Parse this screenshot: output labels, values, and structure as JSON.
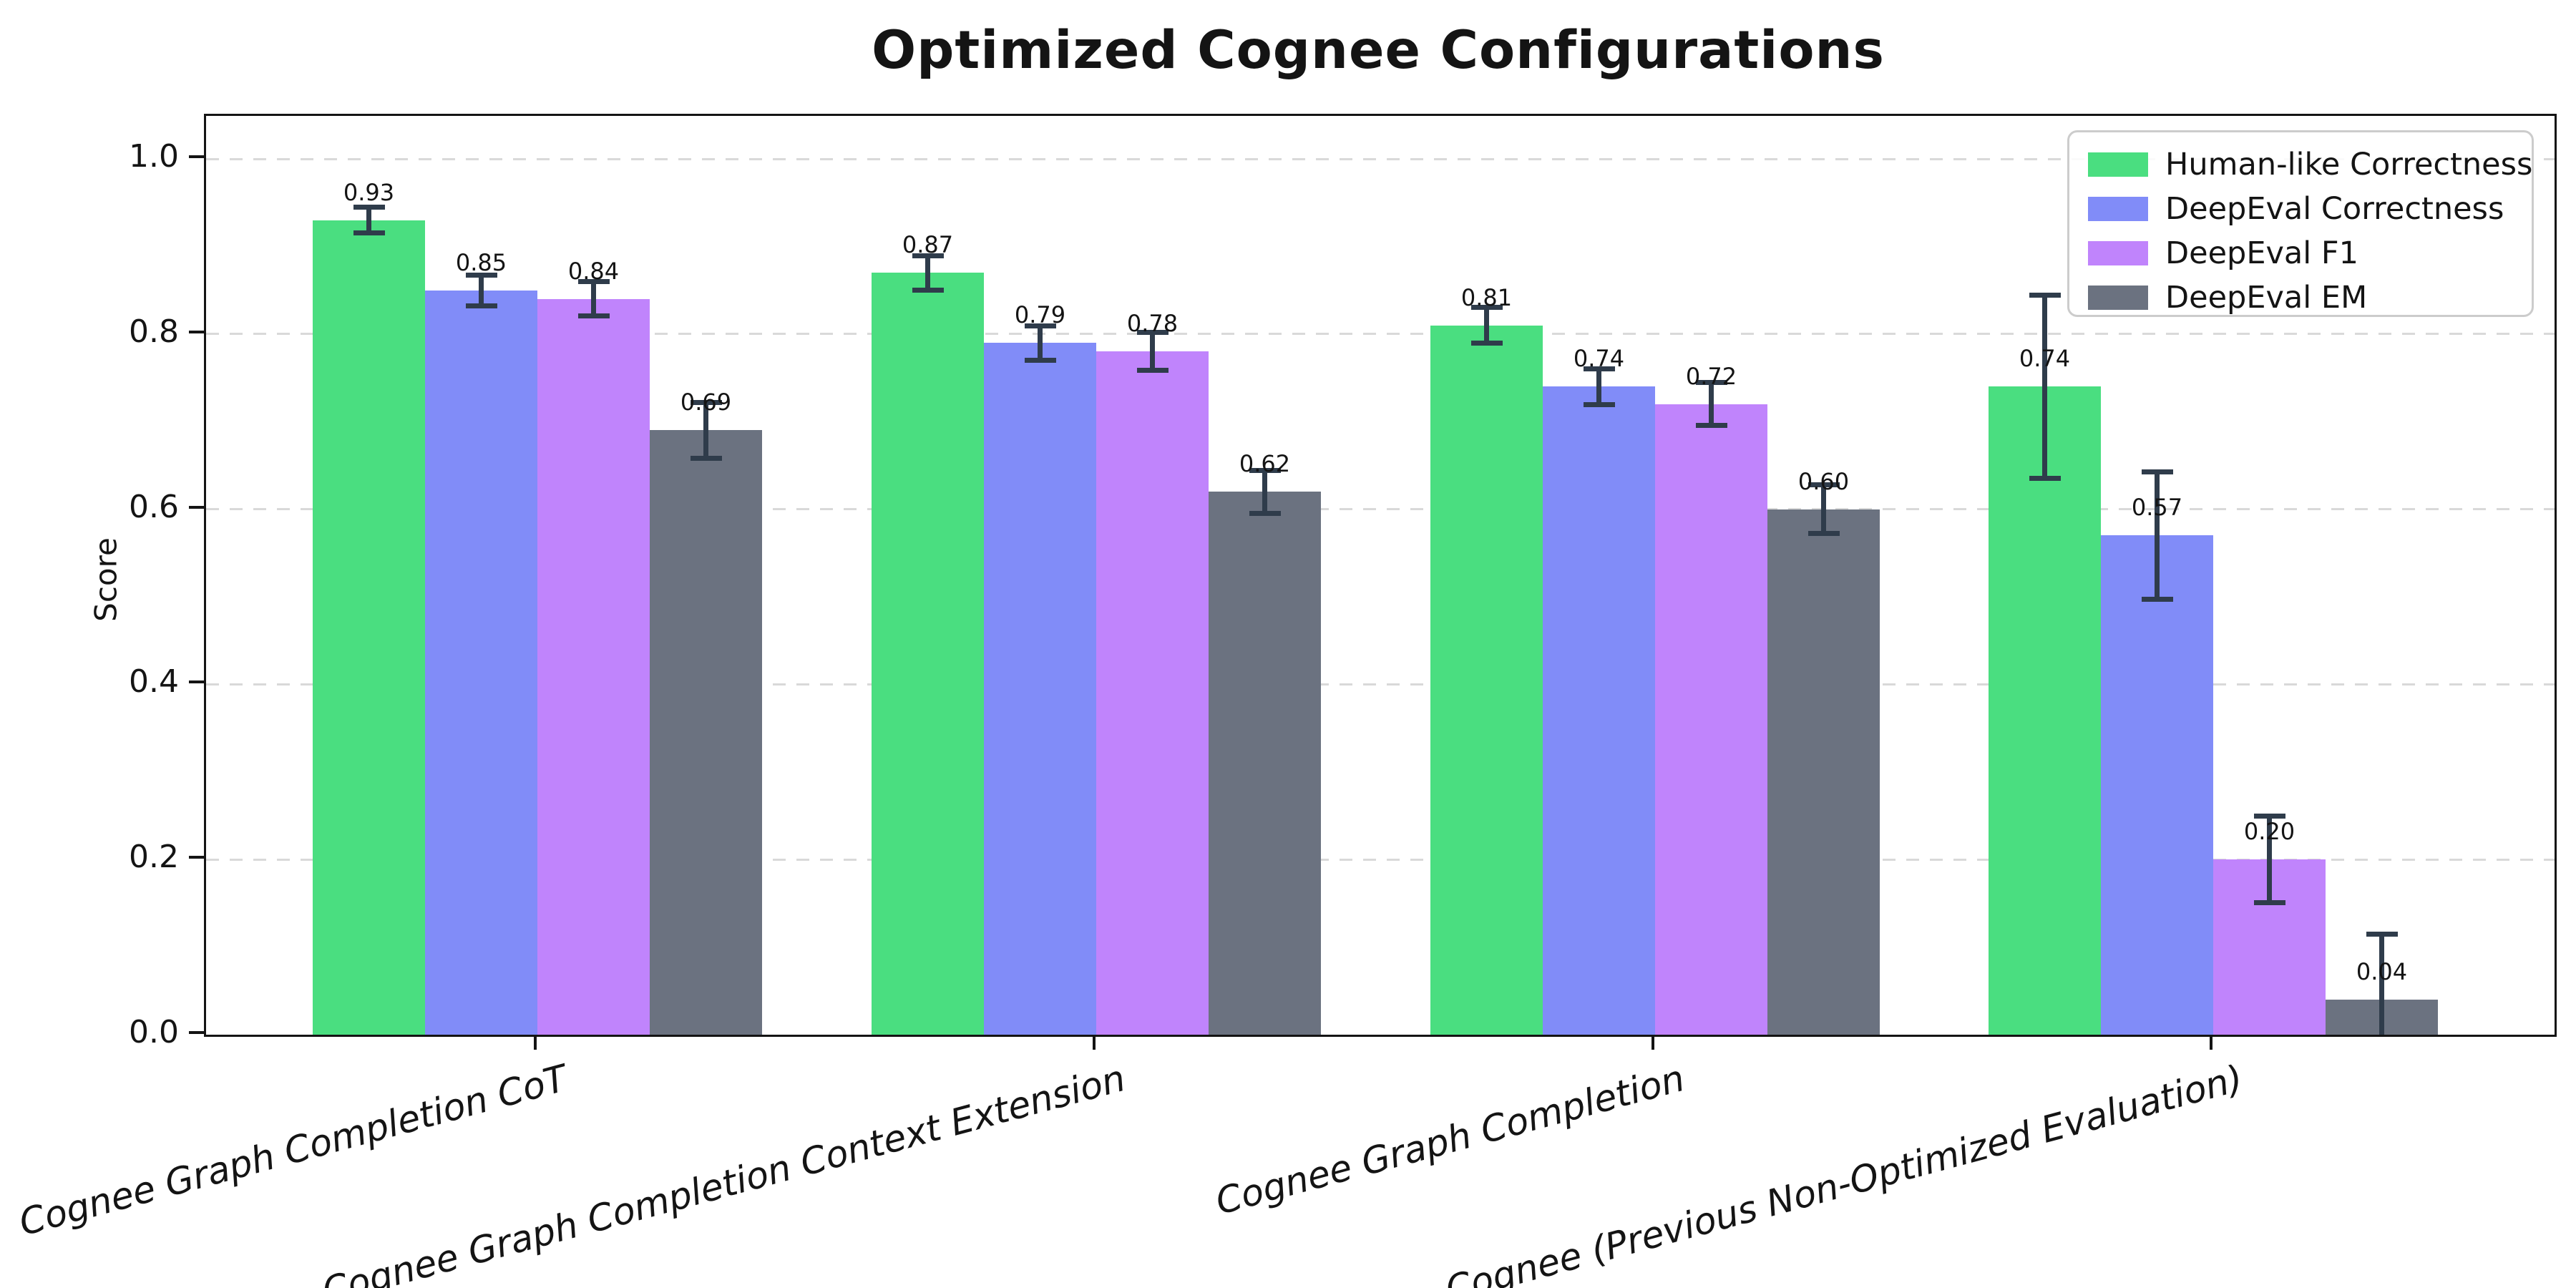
{
  "title": "Optimized Cognee Configurations",
  "ylabel": "Score",
  "chart_data": {
    "type": "bar",
    "title": "Optimized Cognee Configurations",
    "xlabel": "",
    "ylabel": "Score",
    "ylim": [
      0,
      1.05
    ],
    "yticks": [
      "0.0",
      "0.2",
      "0.4",
      "0.6",
      "0.8",
      "1.0"
    ],
    "grid": "horizontal-dashed",
    "legend_position": "upper-right",
    "value_label_format": "0.00",
    "categories": [
      "Cognee Graph Completion CoT",
      "Cognee Graph Completion Context Extension",
      "Cognee Graph Completion",
      "Cognee (Previous Non-Optimized Evaluation)"
    ],
    "series": [
      {
        "name": "Human-like Correctness",
        "color": "#4ade80",
        "values": [
          0.93,
          0.87,
          0.81,
          0.74
        ],
        "errors": [
          0.015,
          0.02,
          0.021,
          0.105
        ]
      },
      {
        "name": "DeepEval Correctness",
        "color": "#818cf8",
        "values": [
          0.85,
          0.79,
          0.74,
          0.57
        ],
        "errors": [
          0.018,
          0.02,
          0.021,
          0.073
        ]
      },
      {
        "name": "DeepEval F1",
        "color": "#c084fc",
        "values": [
          0.84,
          0.78,
          0.72,
          0.2
        ],
        "errors": [
          0.02,
          0.022,
          0.025,
          0.05
        ]
      },
      {
        "name": "DeepEval EM",
        "color": "#6b7280",
        "values": [
          0.69,
          0.62,
          0.6,
          0.04
        ],
        "errors": [
          0.032,
          0.025,
          0.028,
          0.075
        ]
      }
    ]
  },
  "styles": {
    "error_bar_color": "#2f3c4b",
    "grid_color": "#d9d9d9",
    "spine_color": "#141414",
    "text_color": "#141414",
    "legend_border_color": "#cccccc",
    "background": "#ffffff"
  }
}
